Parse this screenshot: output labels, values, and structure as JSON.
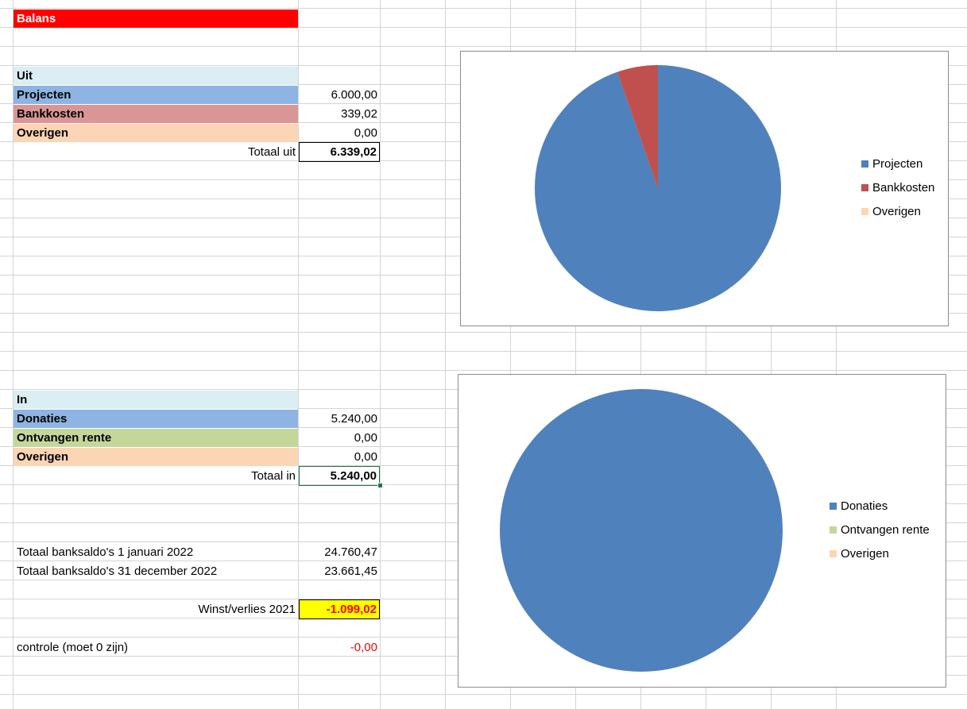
{
  "sheet": {
    "title": "Balans",
    "uit": {
      "header": "Uit",
      "rows": [
        {
          "label": "Projecten",
          "value": "6.000,00"
        },
        {
          "label": "Bankkosten",
          "value": "339,02"
        },
        {
          "label": "Overigen",
          "value": "0,00"
        }
      ],
      "total_label": "Totaal uit",
      "total_value": "6.339,02"
    },
    "in": {
      "header": "In",
      "rows": [
        {
          "label": "Donaties",
          "value": "5.240,00"
        },
        {
          "label": "Ontvangen rente",
          "value": "0,00"
        },
        {
          "label": "Overigen",
          "value": "0,00"
        }
      ],
      "total_label": "Totaal in",
      "total_value": "5.240,00"
    },
    "saldo_start_label": "Totaal banksaldo's 1 januari 2022",
    "saldo_start_value": "24.760,47",
    "saldo_end_label": "Totaal banksaldo's 31 december 2022",
    "saldo_end_value": "23.661,45",
    "result_label": "Winst/verlies 2021",
    "result_value": "-1.099,02",
    "check_label": "controle (moet 0 zijn)",
    "check_value": "-0,00"
  },
  "chart_data": [
    {
      "type": "pie",
      "categories": [
        "Projecten",
        "Bankkosten",
        "Overigen"
      ],
      "values": [
        6000.0,
        339.02,
        0.0
      ],
      "colors": [
        "#4f81bd",
        "#c0504d",
        "#fcd5b4"
      ],
      "legend": "right"
    },
    {
      "type": "pie",
      "categories": [
        "Donaties",
        "Ontvangen rente",
        "Overigen"
      ],
      "values": [
        5240.0,
        0.0,
        0.0
      ],
      "colors": [
        "#4f81bd",
        "#c4d79b",
        "#fcd5b4"
      ],
      "legend": "right"
    }
  ]
}
